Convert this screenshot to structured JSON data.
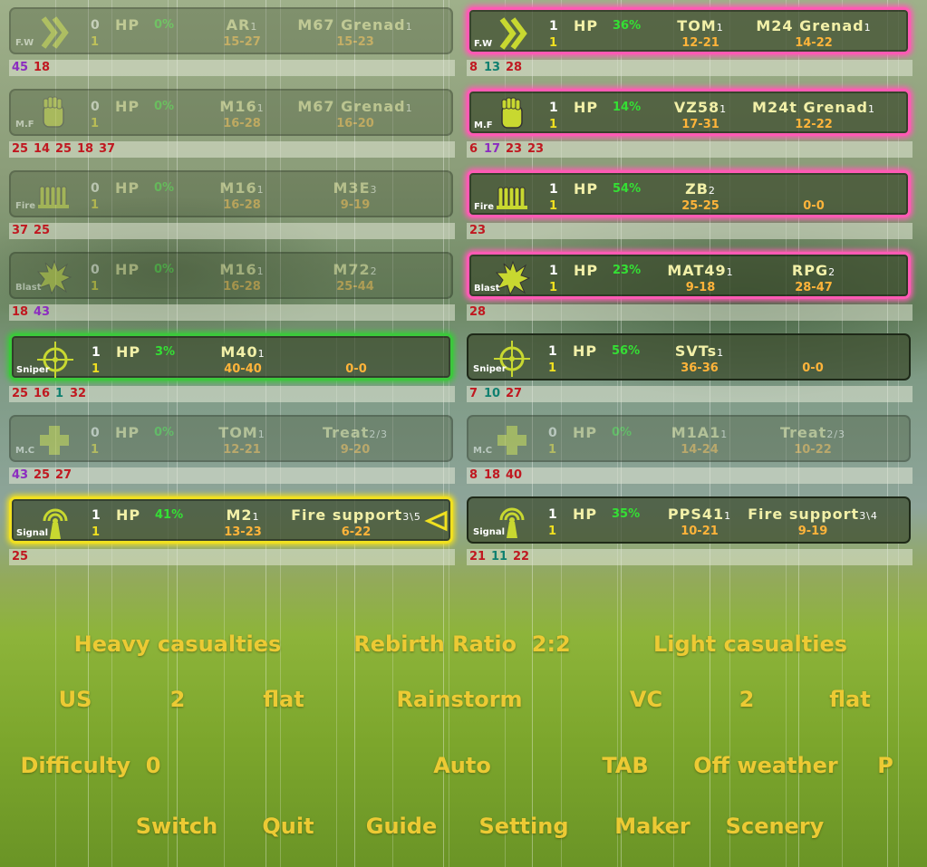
{
  "units": {
    "left": [
      {
        "tag": "F.W",
        "alive": 0,
        "lives": 1,
        "hp_label": "HP",
        "hp": "0%",
        "weapon1": {
          "name": "AR",
          "count": 1,
          "range": "15-27"
        },
        "weapon2": {
          "name": "M67 Grenad",
          "count": 1,
          "range": "15-23"
        },
        "stats": [
          {
            "value": 45,
            "color": "#8c2cc0"
          },
          {
            "value": 18,
            "color": "#c01820"
          }
        ]
      },
      {
        "tag": "M.F",
        "alive": 0,
        "lives": 1,
        "hp_label": "HP",
        "hp": "0%",
        "weapon1": {
          "name": "M16",
          "count": 1,
          "range": "16-28"
        },
        "weapon2": {
          "name": "M67 Grenad",
          "count": 1,
          "range": "16-20"
        },
        "stats": [
          {
            "value": 25,
            "color": "#c01820"
          },
          {
            "value": 14,
            "color": "#c01820"
          },
          {
            "value": 25,
            "color": "#c01820"
          },
          {
            "value": 18,
            "color": "#c01820"
          },
          {
            "value": 37,
            "color": "#c01820"
          }
        ]
      },
      {
        "tag": "Fire",
        "alive": 0,
        "lives": 1,
        "hp_label": "HP",
        "hp": "0%",
        "weapon1": {
          "name": "M16",
          "count": 1,
          "range": "16-28"
        },
        "weapon2": {
          "name": "M3E",
          "count": 3,
          "range": "9-19"
        },
        "stats": [
          {
            "value": 37,
            "color": "#c01820"
          },
          {
            "value": 25,
            "color": "#c01820"
          }
        ]
      },
      {
        "tag": "Blast",
        "alive": 0,
        "lives": 1,
        "hp_label": "HP",
        "hp": "0%",
        "weapon1": {
          "name": "M16",
          "count": 1,
          "range": "16-28"
        },
        "weapon2": {
          "name": "M72",
          "count": 2,
          "range": "25-44"
        },
        "stats": [
          {
            "value": 18,
            "color": "#c01820"
          },
          {
            "value": 43,
            "color": "#8c2cc0"
          }
        ]
      },
      {
        "tag": "Sniper",
        "alive": 1,
        "lives": 1,
        "hp_label": "HP",
        "hp": "3%",
        "weapon1": {
          "name": "M40",
          "count": 1,
          "range": "40-40"
        },
        "weapon2": {
          "range": "0-0"
        },
        "border": "#3cc83c",
        "stats": [
          {
            "value": 25,
            "color": "#c01820"
          },
          {
            "value": 16,
            "color": "#c01820"
          },
          {
            "value": 1,
            "color": "#108070"
          },
          {
            "value": 32,
            "color": "#c01820"
          }
        ]
      },
      {
        "tag": "M.C",
        "alive": 0,
        "lives": 1,
        "hp_label": "HP",
        "hp": "0%",
        "weapon1": {
          "name": "TOM",
          "count": 1,
          "range": "12-21"
        },
        "weapon2": {
          "name": "Treat",
          "count": "2/3",
          "range": "9-20"
        },
        "stats": [
          {
            "value": 43,
            "color": "#8c2cc0"
          },
          {
            "value": 25,
            "color": "#c01820"
          },
          {
            "value": 27,
            "color": "#c01820"
          }
        ]
      },
      {
        "tag": "Signal",
        "alive": 1,
        "lives": 1,
        "hp_label": "HP",
        "hp": "41%",
        "weapon1": {
          "name": "M2",
          "count": 1,
          "range": "13-23"
        },
        "weapon2": {
          "name": "Fire support",
          "count": "3\\5",
          "range": "6-22"
        },
        "border": "#f0e020",
        "selected": true,
        "stats": [
          {
            "value": 25,
            "color": "#c01820"
          }
        ]
      }
    ],
    "right": [
      {
        "tag": "F.W",
        "alive": 1,
        "lives": 1,
        "hp_label": "HP",
        "hp": "36%",
        "weapon1": {
          "name": "TOM",
          "count": 1,
          "range": "12-21"
        },
        "weapon2": {
          "name": "M24 Grenad",
          "count": 1,
          "range": "14-22"
        },
        "border": "#ff5ab4",
        "stats": [
          {
            "value": 8,
            "color": "#c01820"
          },
          {
            "value": 13,
            "color": "#108070"
          },
          {
            "value": 28,
            "color": "#c01820"
          }
        ]
      },
      {
        "tag": "M.F",
        "alive": 1,
        "lives": 1,
        "hp_label": "HP",
        "hp": "14%",
        "weapon1": {
          "name": "VZ58",
          "count": 1,
          "range": "17-31"
        },
        "weapon2": {
          "name": "M24t Grenad",
          "count": 1,
          "range": "12-22"
        },
        "border": "#ff5ab4",
        "stats": [
          {
            "value": 6,
            "color": "#c01820"
          },
          {
            "value": 17,
            "color": "#8c2cc0"
          },
          {
            "value": 23,
            "color": "#c01820"
          },
          {
            "value": 23,
            "color": "#c01820"
          }
        ]
      },
      {
        "tag": "Fire",
        "alive": 1,
        "lives": 1,
        "hp_label": "HP",
        "hp": "54%",
        "weapon1": {
          "name": "ZB",
          "count": 2,
          "range": "25-25"
        },
        "weapon2": {
          "range": "0-0"
        },
        "border": "#ff5ab4",
        "stats": [
          {
            "value": 23,
            "color": "#c01820"
          }
        ]
      },
      {
        "tag": "Blast",
        "alive": 1,
        "lives": 1,
        "hp_label": "HP",
        "hp": "23%",
        "weapon1": {
          "name": "MAT49",
          "count": 1,
          "range": "9-18"
        },
        "weapon2": {
          "name": "RPG",
          "count": 2,
          "range": "28-47"
        },
        "border": "#ff5ab4",
        "stats": [
          {
            "value": 28,
            "color": "#c01820"
          }
        ]
      },
      {
        "tag": "Sniper",
        "alive": 1,
        "lives": 1,
        "hp_label": "HP",
        "hp": "56%",
        "weapon1": {
          "name": "SVTs",
          "count": 1,
          "range": "36-36"
        },
        "weapon2": {
          "range": "0-0"
        },
        "stats": [
          {
            "value": 7,
            "color": "#c01820"
          },
          {
            "value": 10,
            "color": "#108070"
          },
          {
            "value": 27,
            "color": "#c01820"
          }
        ]
      },
      {
        "tag": "M.C",
        "alive": 0,
        "lives": 1,
        "hp_label": "HP",
        "hp": "0%",
        "weapon1": {
          "name": "M1A1",
          "count": 1,
          "range": "14-24"
        },
        "weapon2": {
          "name": "Treat",
          "count": "2/3",
          "range": "10-22"
        },
        "stats": [
          {
            "value": 8,
            "color": "#c01820"
          },
          {
            "value": 18,
            "color": "#c01820"
          },
          {
            "value": 40,
            "color": "#c01820"
          }
        ]
      },
      {
        "tag": "Signal",
        "alive": 1,
        "lives": 1,
        "hp_label": "HP",
        "hp": "35%",
        "weapon1": {
          "name": "PPS41",
          "count": 1,
          "range": "10-21"
        },
        "weapon2": {
          "name": "Fire support",
          "count": "3\\4",
          "range": "9-19"
        },
        "stats": [
          {
            "value": 21,
            "color": "#c01820"
          },
          {
            "value": 11,
            "color": "#108070"
          },
          {
            "value": 22,
            "color": "#c01820"
          }
        ]
      }
    ]
  },
  "menu": {
    "rows": [
      [
        "Heavy casualties",
        "Rebirth Ratio  2:2",
        "Light casualties"
      ],
      [
        "US",
        "2",
        "flat",
        "Rainstorm",
        "VC",
        "2",
        "flat"
      ],
      [
        "Difficulty  0",
        "Auto",
        "TAB",
        "Off weather",
        "P"
      ],
      [
        "Switch",
        "Quit",
        "Guide",
        "Setting",
        "Maker",
        "Scenery"
      ]
    ]
  }
}
